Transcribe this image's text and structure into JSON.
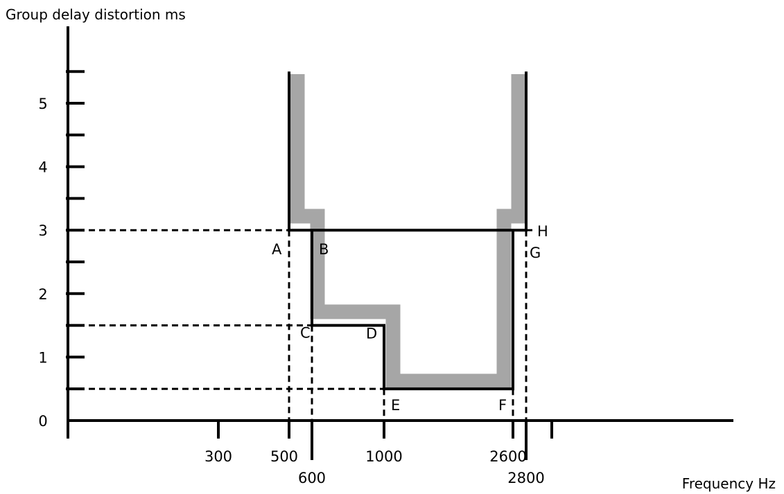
{
  "chart_data": {
    "type": "line",
    "title": "",
    "ylabel": "Group delay distortion ms",
    "xlabel": "Frequency Hz",
    "y_ticks": [
      {
        "value": 0,
        "label": "0"
      },
      {
        "value": 1,
        "label": "1"
      },
      {
        "value": 2,
        "label": "2"
      },
      {
        "value": 3,
        "label": "3"
      },
      {
        "value": 4,
        "label": "4"
      },
      {
        "value": 5,
        "label": "5"
      }
    ],
    "y_minor_ticks": [
      0.5,
      1.5,
      2.5,
      3.5,
      4.5,
      5.5
    ],
    "ylim": [
      0,
      5.5
    ],
    "x_ticks": [
      {
        "value": 300,
        "label": "300",
        "row": "upper"
      },
      {
        "value": 500,
        "label": "500",
        "row": "upper"
      },
      {
        "value": 600,
        "label": "600",
        "row": "lower"
      },
      {
        "value": 1000,
        "label": "1000",
        "row": "upper"
      },
      {
        "value": 2600,
        "label": "2600",
        "row": "upper"
      },
      {
        "value": 2800,
        "label": "2800",
        "row": "lower"
      },
      {
        "value": 3000,
        "label": "",
        "row": "upper"
      }
    ],
    "x_axis_note": "non-linear frequency scale; positions follow the printed tick marks",
    "series": [
      {
        "points": [
          {
            "x": 500,
            "y": 5.5
          },
          {
            "x": 500,
            "y": 3.0
          },
          {
            "x": 2800,
            "y": 3.0
          },
          {
            "x": 2800,
            "y": 5.5
          }
        ]
      },
      {
        "points": [
          {
            "x": 600,
            "y": 3.0
          },
          {
            "x": 600,
            "y": 1.5
          },
          {
            "x": 1000,
            "y": 1.5
          },
          {
            "x": 1000,
            "y": 0.5
          },
          {
            "x": 2600,
            "y": 0.5
          },
          {
            "x": 2600,
            "y": 3.0
          }
        ]
      }
    ],
    "dashed_reference_lines": {
      "horizontal": [
        3.0,
        1.5,
        0.5
      ],
      "vertical": [
        500,
        600,
        1000,
        2600,
        2800
      ]
    },
    "point_labels": [
      {
        "text": "A",
        "x": 500,
        "y": 3.0
      },
      {
        "text": "B",
        "x": 600,
        "y": 3.0
      },
      {
        "text": "C",
        "x": 600,
        "y": 1.5
      },
      {
        "text": "D",
        "x": 1000,
        "y": 1.5
      },
      {
        "text": "E",
        "x": 1000,
        "y": 0.5
      },
      {
        "text": "F",
        "x": 2600,
        "y": 0.5
      },
      {
        "text": "G",
        "x": 2800,
        "y": 3.0
      },
      {
        "text": "H",
        "x": 2800,
        "y": 3.0
      }
    ]
  },
  "colors": {
    "line": "#000000",
    "band": "#a6a6a6",
    "background": "#ffffff"
  }
}
